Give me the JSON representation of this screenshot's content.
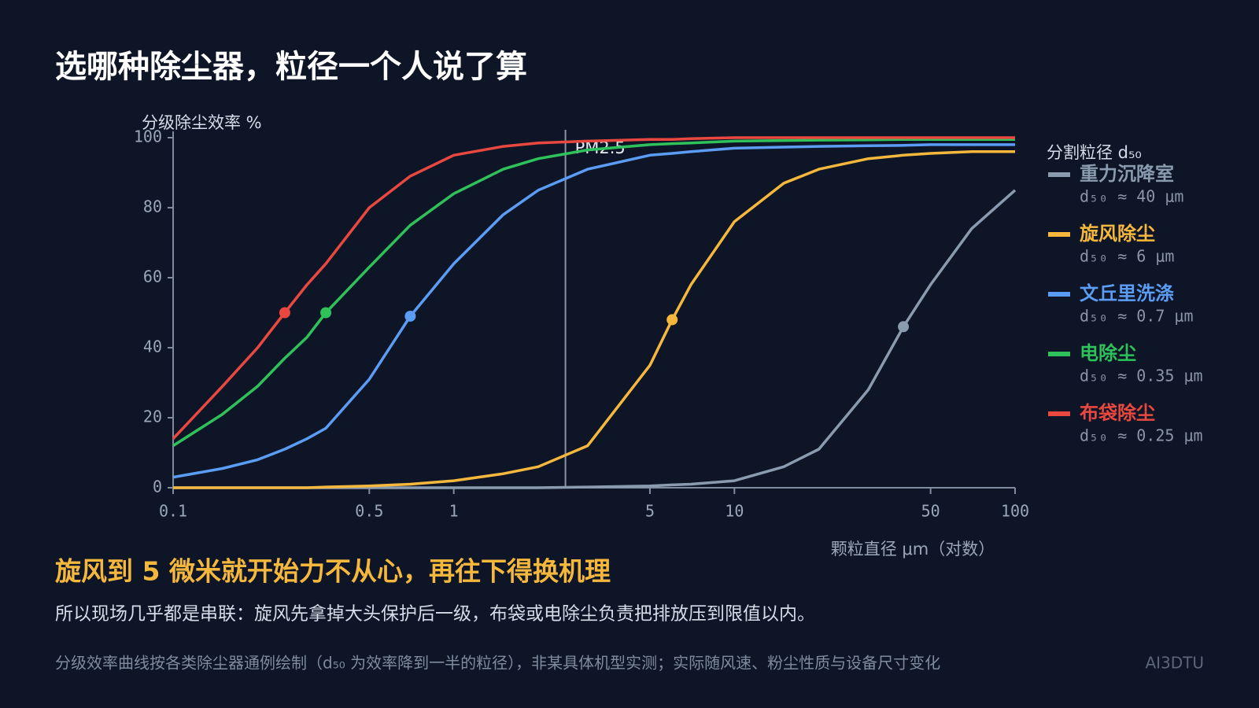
{
  "title": "选哪种除尘器，粒径一个人说了算",
  "headline": "旋风到 5 微米就开始力不从心，再往下得换机理",
  "body": "所以现场几乎都是串联：旋风先拿掉大头保护后一级，布袋或电除尘负责把排放压到限值以内。",
  "footnote": "分级效率曲线按各类除尘器通例绘制（d₅₀ 为效率降到一半的粒径），非某具体机型实测；实际随风速、粉尘性质与设备尺寸变化",
  "brand": "AI3DTU",
  "chart_data": {
    "type": "line",
    "y_label": "分级除尘效率 %",
    "x_label": "颗粒直径 μm（对数）",
    "legend_title": "分割粒径 d₅₀",
    "xscale": "log",
    "xlim": [
      0.1,
      100
    ],
    "xticks": [
      0.1,
      0.5,
      1,
      5,
      10,
      50,
      100
    ],
    "ylim": [
      0,
      100
    ],
    "yticks": [
      0,
      20,
      40,
      60,
      80,
      100
    ],
    "reference_lines": [
      {
        "x": 2.5,
        "label": "PM2.5"
      }
    ],
    "x": [
      0.1,
      0.15,
      0.2,
      0.25,
      0.3,
      0.35,
      0.5,
      0.7,
      1,
      1.5,
      2,
      3,
      5,
      6,
      7,
      10,
      15,
      20,
      30,
      40,
      50,
      70,
      100
    ],
    "series": [
      {
        "name": "重力沉降室",
        "color": "#8a9bb0",
        "d50": 40,
        "d50_label": "d₅₀ ≈ 40 μm",
        "values": [
          0,
          0,
          0,
          0,
          0,
          0,
          0,
          0,
          0,
          0,
          0,
          0.2,
          0.5,
          0.8,
          1,
          2,
          6,
          11,
          28,
          46,
          58,
          74,
          85
        ]
      },
      {
        "name": "旋风除尘",
        "color": "#f5b83d",
        "d50": 6,
        "d50_label": "d₅₀ ≈ 6 μm",
        "values": [
          0,
          0,
          0,
          0,
          0,
          0.2,
          0.5,
          1,
          2,
          4,
          6,
          12,
          35,
          48,
          58,
          76,
          87,
          91,
          94,
          95,
          95.5,
          96,
          96
        ]
      },
      {
        "name": "文丘里洗涤",
        "color": "#5b9cf5",
        "d50": 0.7,
        "d50_label": "d₅₀ ≈ 0.7 μm",
        "values": [
          3,
          5.5,
          8,
          11,
          14,
          17,
          31,
          49,
          64,
          78,
          85,
          91,
          95,
          95.5,
          96,
          97,
          97.3,
          97.5,
          97.7,
          97.8,
          98,
          98,
          98
        ]
      },
      {
        "name": "电除尘",
        "color": "#2fc15a",
        "d50": 0.35,
        "d50_label": "d₅₀ ≈ 0.35 μm",
        "values": [
          12,
          21,
          29,
          37,
          43,
          50,
          63,
          75,
          84,
          91,
          94,
          96.5,
          98,
          98.3,
          98.5,
          99,
          99.2,
          99.3,
          99.4,
          99.5,
          99.5,
          99.5,
          99.5
        ]
      },
      {
        "name": "布袋除尘",
        "color": "#e8483f",
        "d50": 0.25,
        "d50_label": "d₅₀ ≈ 0.25 μm",
        "values": [
          14,
          29,
          40,
          50,
          58,
          64,
          80,
          89,
          95,
          97.5,
          98.5,
          99,
          99.5,
          99.5,
          99.7,
          100,
          100,
          100,
          100,
          100,
          100,
          100,
          100
        ]
      }
    ]
  }
}
